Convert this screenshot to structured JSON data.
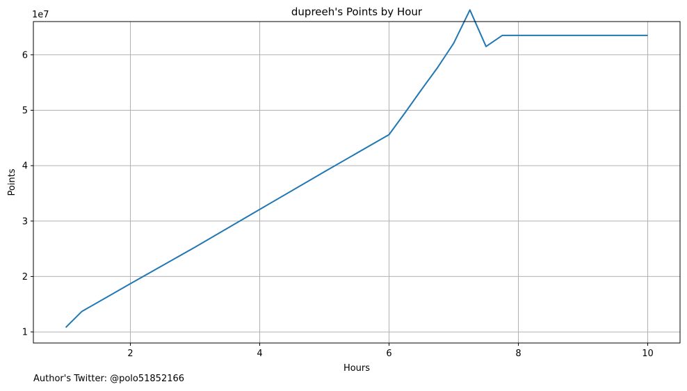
{
  "chart_data": {
    "type": "line",
    "title": "dupreeh's Points by Hour",
    "xlabel": "Hours",
    "ylabel": "Points",
    "y_multiplier_label": "1e7",
    "xlim": [
      0.5,
      10.5
    ],
    "ylim": [
      0.8,
      6.6
    ],
    "x_ticks": [
      2,
      4,
      6,
      8,
      10
    ],
    "x_tick_labels": [
      "2",
      "4",
      "6",
      "8",
      "10"
    ],
    "y_ticks": [
      1,
      2,
      3,
      4,
      5,
      6
    ],
    "y_tick_labels": [
      "1",
      "2",
      "3",
      "4",
      "5",
      "6"
    ],
    "grid": true,
    "series": [
      {
        "color": "#1f77b4",
        "x": [
          1.0,
          1.25,
          2.0,
          3.0,
          4.0,
          5.0,
          6.0,
          6.25,
          6.5,
          6.75,
          7.0,
          7.25,
          7.5,
          7.75,
          8.0,
          9.0,
          10.0
        ],
        "y": [
          1.08,
          1.37,
          1.87,
          2.53,
          3.21,
          3.89,
          4.56,
          4.96,
          5.37,
          5.77,
          6.21,
          6.81,
          6.15,
          6.35,
          6.35,
          6.35,
          6.35
        ]
      }
    ]
  },
  "footer": {
    "text": "Author's Twitter: @polo51852166"
  }
}
